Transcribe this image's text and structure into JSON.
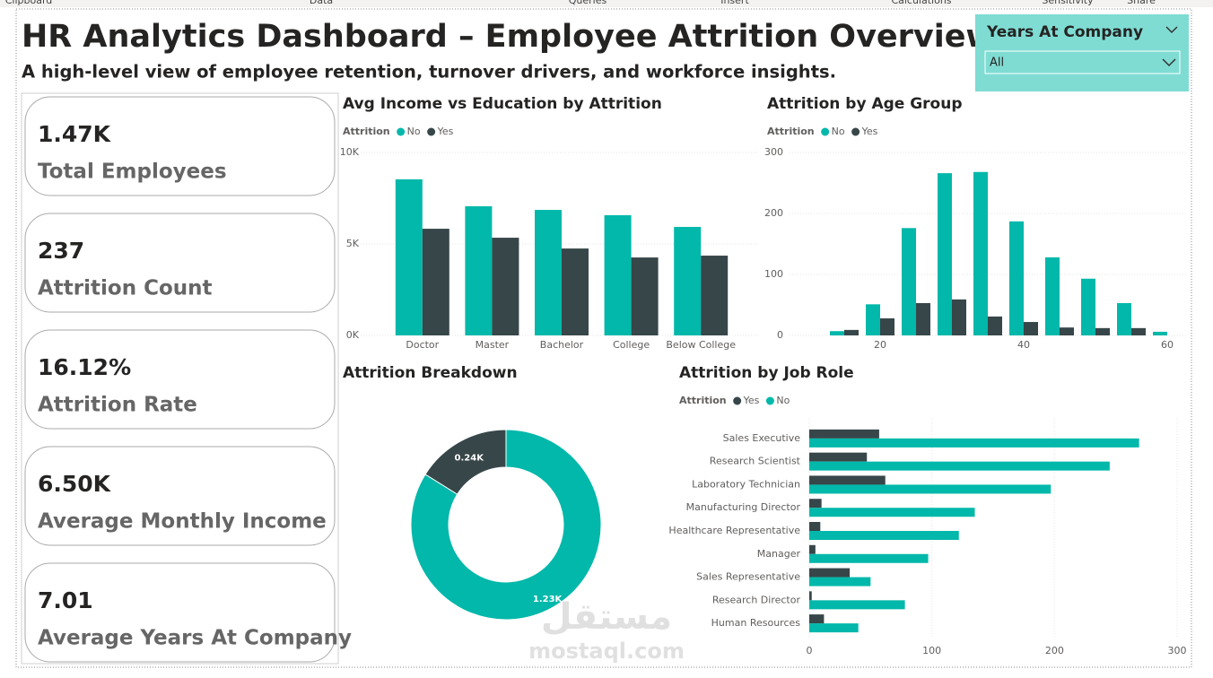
{
  "ribbon": [
    "Clipboard",
    "Data",
    "Queries",
    "Insert",
    "Calculations",
    "Sensitivity",
    "Share"
  ],
  "header": {
    "title": "HR Analytics Dashboard – Employee Attrition Overview",
    "subtitle": "A high-level view of employee retention, turnover drivers, and workforce insights."
  },
  "slicer": {
    "title": "Years At Company",
    "value": "All"
  },
  "cards": [
    {
      "value": "1.47K",
      "label": "Total Employees"
    },
    {
      "value": "237",
      "label": "Attrition Count"
    },
    {
      "value": "16.12%",
      "label": "Attrition Rate"
    },
    {
      "value": "6.50K",
      "label": "Average Monthly Income"
    },
    {
      "value": "7.01",
      "label": "Average Years At Company"
    }
  ],
  "watermark": {
    "arabic": "مستقل",
    "latin": "mostaql.com"
  },
  "chart_data": [
    {
      "type": "bar",
      "title": "Avg Income vs Education by Attrition",
      "legend_title": "Attrition",
      "categories": [
        "Doctor",
        "Master",
        "Bachelor",
        "College",
        "Below College"
      ],
      "series": [
        {
          "name": "No",
          "color": "#01b8aa",
          "values": [
            8530,
            7060,
            6860,
            6570,
            5930
          ]
        },
        {
          "name": "Yes",
          "color": "#374649",
          "values": [
            5830,
            5340,
            4750,
            4260,
            4360
          ]
        }
      ],
      "ylim": [
        0,
        10000
      ],
      "yticks": [
        {
          "value": 0,
          "label": "0K"
        },
        {
          "value": 5000,
          "label": "5K"
        },
        {
          "value": 10000,
          "label": "10K"
        }
      ],
      "grid": true
    },
    {
      "type": "bar",
      "title": "Attrition by Age Group",
      "legend_title": "Attrition",
      "x": [
        15,
        20,
        25,
        30,
        35,
        40,
        45,
        50,
        55,
        60
      ],
      "series": [
        {
          "name": "No",
          "color": "#01b8aa",
          "values": [
            7,
            51,
            176,
            266,
            268,
            187,
            128,
            93,
            53,
            6
          ]
        },
        {
          "name": "Yes",
          "color": "#374649",
          "values": [
            9,
            28,
            53,
            59,
            31,
            22,
            13,
            12,
            12,
            0
          ]
        }
      ],
      "xlim": [
        7.5,
        62.5
      ],
      "xticks": [
        20,
        40,
        60
      ],
      "ylim": [
        0,
        300
      ],
      "yticks": [
        0,
        100,
        200,
        300
      ],
      "grid": true
    },
    {
      "type": "donut",
      "title": "Attrition Breakdown",
      "categories": [
        "No",
        "Yes"
      ],
      "values": [
        1233,
        237
      ],
      "value_labels": [
        "1.23K",
        "0.24K"
      ],
      "colors": [
        "#01b8aa",
        "#374649"
      ]
    },
    {
      "type": "barh",
      "title": "Attrition by Job Role",
      "legend_title": "Attrition",
      "categories": [
        "Sales Executive",
        "Research Scientist",
        "Laboratory Technician",
        "Manufacturing Director",
        "Healthcare Representative",
        "Manager",
        "Sales Representative",
        "Research Director",
        "Human Resources"
      ],
      "series": [
        {
          "name": "Yes",
          "color": "#374649",
          "values": [
            57,
            47,
            62,
            10,
            9,
            5,
            33,
            2,
            12
          ]
        },
        {
          "name": "No",
          "color": "#01b8aa",
          "values": [
            269,
            245,
            197,
            135,
            122,
            97,
            50,
            78,
            40
          ]
        }
      ],
      "xlim": [
        0,
        300
      ],
      "xticks": [
        0,
        100,
        200,
        300
      ],
      "grid": true
    }
  ]
}
